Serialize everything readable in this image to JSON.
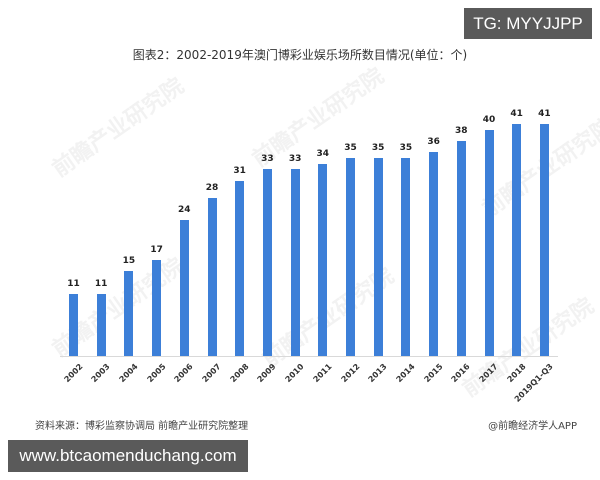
{
  "header": {
    "tg_badge": "TG: MYYJJPP"
  },
  "footer": {
    "source": "资料来源：博彩监察协调局 前瞻产业研究院整理",
    "app_credit": "@前瞻经济学人APP",
    "site_badge": "www.btcaomenduchang.com"
  },
  "watermark_text": "前瞻产业研究院",
  "colors": {
    "bar": "#3c7fd8",
    "badge_bg": "#5a5a5a"
  },
  "chart_data": {
    "type": "bar",
    "title": "图表2：2002-2019年澳门博彩业娱乐场所数目情况(单位：个)",
    "xlabel": "",
    "ylabel": "",
    "unit": "个",
    "categories": [
      "2002",
      "2003",
      "2004",
      "2005",
      "2006",
      "2007",
      "2008",
      "2009",
      "2010",
      "2011",
      "2012",
      "2013",
      "2014",
      "2015",
      "2016",
      "2017",
      "2018",
      "2019Q1-Q3"
    ],
    "values": [
      11,
      11,
      15,
      17,
      24,
      28,
      31,
      33,
      33,
      34,
      35,
      35,
      35,
      36,
      38,
      40,
      41,
      41
    ],
    "ylim": [
      0,
      45
    ],
    "grid": false,
    "legend": null,
    "data_labels": true
  }
}
